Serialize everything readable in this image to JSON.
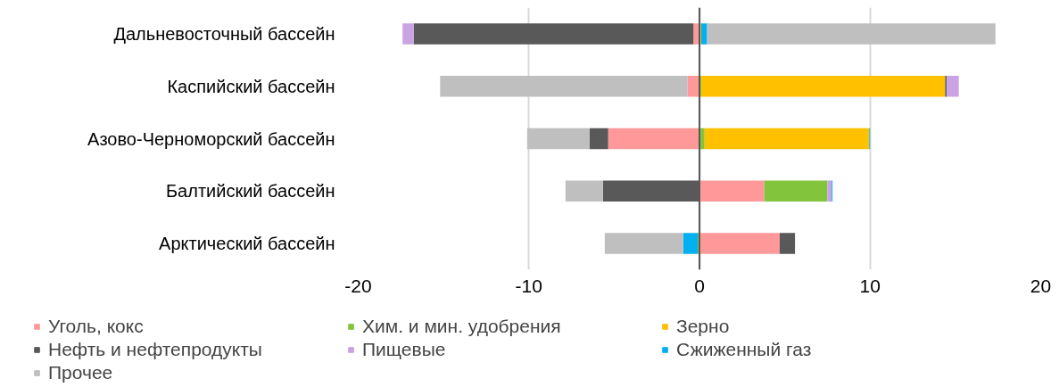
{
  "chart_data": {
    "type": "bar",
    "orientation": "horizontal",
    "stacked": true,
    "categories": [
      "Дальневосточный бассейн",
      "Каспийский бассейн",
      "Азово-Черноморский бассейн",
      "Балтийский бассейн",
      "Арктический бассейн"
    ],
    "series": [
      {
        "name": "Уголь, кокс",
        "color": "#ff9999",
        "values": [
          -0.35,
          -0.7,
          -5.35,
          3.8,
          4.7
        ]
      },
      {
        "name": "Хим. и мин. удобрения",
        "color": "#82c43c",
        "values": [
          null,
          0.1,
          0.3,
          3.7,
          -0.1
        ]
      },
      {
        "name": "Зерно",
        "color": "#ffc000",
        "values": [
          0.1,
          14.3,
          9.65,
          null,
          null
        ]
      },
      {
        "name": "Нефть и нефтепродукты",
        "color": "#595959",
        "values": [
          -16.4,
          0.1,
          -1.1,
          -5.65,
          0.9
        ]
      },
      {
        "name": "Пищевые",
        "color": "#c9a3e3",
        "values": [
          -0.65,
          0.7,
          null,
          0.25,
          null
        ]
      },
      {
        "name": "Сжиженный газ",
        "color": "#00b0f0",
        "values": [
          0.35,
          null,
          0.05,
          0.05,
          -0.85
        ]
      },
      {
        "name": "Прочее",
        "color": "#bfbfbf",
        "values": [
          16.9,
          -14.5,
          -3.65,
          -2.2,
          -4.6
        ]
      }
    ],
    "xlim": [
      -20,
      20
    ],
    "xticks": [
      -20,
      -10,
      0,
      10,
      20
    ],
    "grid": "x",
    "legend": "bottom"
  }
}
